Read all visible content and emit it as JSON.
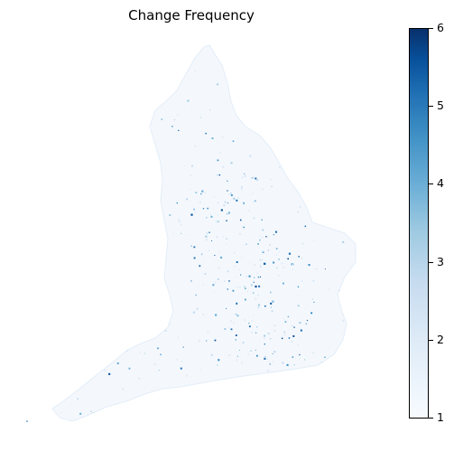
{
  "map": {
    "title": "Change Frequency",
    "colormap": "Blues",
    "colorbar": {
      "min": 1,
      "max": 6,
      "ticks": [
        "1",
        "2",
        "3",
        "4",
        "5",
        "6"
      ],
      "colors": {
        "low": "#f7fbff",
        "high": "#08306b"
      }
    },
    "region": "England"
  }
}
